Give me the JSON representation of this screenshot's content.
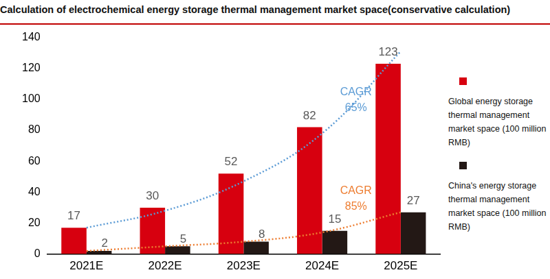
{
  "chart_data": {
    "type": "bar",
    "title": "Calculation of electrochemical energy storage thermal management market space(conservative calculation)",
    "categories": [
      "2021E",
      "2022E",
      "2023E",
      "2024E",
      "2025E"
    ],
    "series": [
      {
        "name": "Global energy storage thermal management market space (100 million RMB)",
        "color": "#d7000f",
        "values": [
          17,
          30,
          52,
          82,
          123
        ]
      },
      {
        "name": "China's energy storage thermal management market space (100 million RMB)",
        "color": "#231815",
        "values": [
          2,
          5,
          8,
          15,
          27
        ]
      }
    ],
    "annotations": [
      {
        "text": "CAGR 65%",
        "color": "#5b9bd5",
        "line_style": "dotted",
        "values": [
          17,
          28,
          47,
          78,
          131
        ]
      },
      {
        "text": "CAGR 85%",
        "color": "#ed7d31",
        "line_style": "dotted",
        "values": [
          2,
          5,
          8,
          14,
          27
        ]
      }
    ],
    "ylim": [
      0,
      140
    ],
    "yticks": [
      0,
      20,
      40,
      60,
      80,
      100,
      120,
      140
    ],
    "grid": false,
    "legend": "right",
    "data_labels": true
  }
}
